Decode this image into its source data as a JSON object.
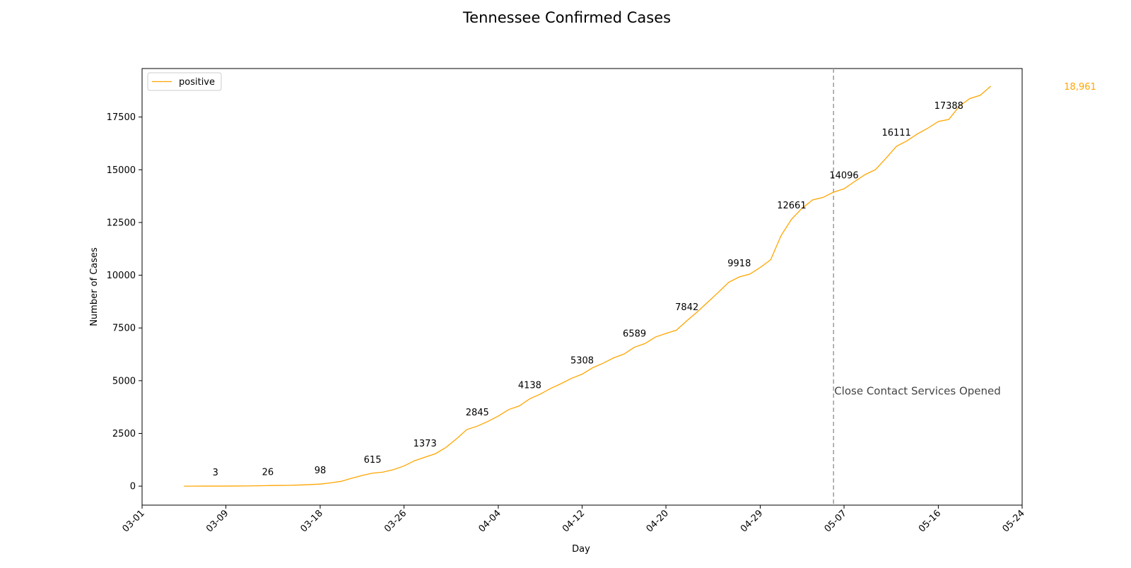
{
  "chart_data": {
    "type": "line",
    "title": "Tennessee Confirmed Cases",
    "xlabel": "Day",
    "ylabel": "Number of Cases",
    "xlim": [
      "2020-03-01",
      "2020-05-24"
    ],
    "ylim": [
      -900,
      19800
    ],
    "x_ticks": [
      "03-01",
      "03-09",
      "03-18",
      "03-26",
      "04-04",
      "04-12",
      "04-20",
      "04-29",
      "05-07",
      "05-16",
      "05-24"
    ],
    "x_tick_dates": [
      "2020-03-01",
      "2020-03-09",
      "2020-03-18",
      "2020-03-26",
      "2020-04-04",
      "2020-04-12",
      "2020-04-20",
      "2020-04-29",
      "2020-05-07",
      "2020-05-16",
      "2020-05-24"
    ],
    "y_ticks": [
      0,
      2500,
      5000,
      7500,
      10000,
      12500,
      15000,
      17500
    ],
    "grid": false,
    "legend": {
      "placement": "upper-left",
      "entries": [
        "positive"
      ]
    },
    "series": [
      {
        "name": "positive",
        "color": "#ffa500",
        "points": [
          [
            "2020-03-05",
            1
          ],
          [
            "2020-03-06",
            1
          ],
          [
            "2020-03-07",
            2
          ],
          [
            "2020-03-08",
            3
          ],
          [
            "2020-03-09",
            3
          ],
          [
            "2020-03-10",
            7
          ],
          [
            "2020-03-11",
            9
          ],
          [
            "2020-03-12",
            18
          ],
          [
            "2020-03-13",
            26
          ],
          [
            "2020-03-14",
            32
          ],
          [
            "2020-03-15",
            39
          ],
          [
            "2020-03-16",
            52
          ],
          [
            "2020-03-17",
            73
          ],
          [
            "2020-03-18",
            98
          ],
          [
            "2020-03-19",
            154
          ],
          [
            "2020-03-20",
            228
          ],
          [
            "2020-03-21",
            371
          ],
          [
            "2020-03-22",
            505
          ],
          [
            "2020-03-23",
            615
          ],
          [
            "2020-03-24",
            667
          ],
          [
            "2020-03-25",
            784
          ],
          [
            "2020-03-26",
            957
          ],
          [
            "2020-03-27",
            1203
          ],
          [
            "2020-03-28",
            1373
          ],
          [
            "2020-03-29",
            1537
          ],
          [
            "2020-03-30",
            1834
          ],
          [
            "2020-03-31",
            2239
          ],
          [
            "2020-04-01",
            2683
          ],
          [
            "2020-04-02",
            2845
          ],
          [
            "2020-04-03",
            3067
          ],
          [
            "2020-04-04",
            3321
          ],
          [
            "2020-04-05",
            3633
          ],
          [
            "2020-04-06",
            3802
          ],
          [
            "2020-04-07",
            4138
          ],
          [
            "2020-04-08",
            4362
          ],
          [
            "2020-04-09",
            4634
          ],
          [
            "2020-04-10",
            4862
          ],
          [
            "2020-04-11",
            5114
          ],
          [
            "2020-04-12",
            5308
          ],
          [
            "2020-04-13",
            5610
          ],
          [
            "2020-04-14",
            5827
          ],
          [
            "2020-04-15",
            6079
          ],
          [
            "2020-04-16",
            6263
          ],
          [
            "2020-04-17",
            6589
          ],
          [
            "2020-04-18",
            6762
          ],
          [
            "2020-04-19",
            7070
          ],
          [
            "2020-04-20",
            7238
          ],
          [
            "2020-04-21",
            7394
          ],
          [
            "2020-04-22",
            7842
          ],
          [
            "2020-04-23",
            8266
          ],
          [
            "2020-04-24",
            8726
          ],
          [
            "2020-04-25",
            9189
          ],
          [
            "2020-04-26",
            9667
          ],
          [
            "2020-04-27",
            9918
          ],
          [
            "2020-04-28",
            10052
          ],
          [
            "2020-04-29",
            10366
          ],
          [
            "2020-04-30",
            10735
          ],
          [
            "2020-05-01",
            11891
          ],
          [
            "2020-05-02",
            12661
          ],
          [
            "2020-05-03",
            13177
          ],
          [
            "2020-05-04",
            13571
          ],
          [
            "2020-05-05",
            13690
          ],
          [
            "2020-05-06",
            13938
          ],
          [
            "2020-05-07",
            14096
          ],
          [
            "2020-05-08",
            14441
          ],
          [
            "2020-05-09",
            14768
          ],
          [
            "2020-05-10",
            15007
          ],
          [
            "2020-05-11",
            15544
          ],
          [
            "2020-05-12",
            16111
          ],
          [
            "2020-05-13",
            16370
          ],
          [
            "2020-05-14",
            16699
          ],
          [
            "2020-05-15",
            16970
          ],
          [
            "2020-05-16",
            17288
          ],
          [
            "2020-05-17",
            17388
          ],
          [
            "2020-05-18",
            18011
          ],
          [
            "2020-05-19",
            18378
          ],
          [
            "2020-05-20",
            18532
          ],
          [
            "2020-05-21",
            18961
          ]
        ]
      }
    ],
    "point_labels": [
      {
        "x": "2020-03-08",
        "y": 3,
        "text": "3"
      },
      {
        "x": "2020-03-13",
        "y": 26,
        "text": "26"
      },
      {
        "x": "2020-03-18",
        "y": 98,
        "text": "98"
      },
      {
        "x": "2020-03-23",
        "y": 615,
        "text": "615"
      },
      {
        "x": "2020-03-28",
        "y": 1373,
        "text": "1373"
      },
      {
        "x": "2020-04-02",
        "y": 2845,
        "text": "2845"
      },
      {
        "x": "2020-04-07",
        "y": 4138,
        "text": "4138"
      },
      {
        "x": "2020-04-12",
        "y": 5308,
        "text": "5308"
      },
      {
        "x": "2020-04-17",
        "y": 6589,
        "text": "6589"
      },
      {
        "x": "2020-04-22",
        "y": 7842,
        "text": "7842"
      },
      {
        "x": "2020-04-27",
        "y": 9918,
        "text": "9918"
      },
      {
        "x": "2020-05-02",
        "y": 12661,
        "text": "12661"
      },
      {
        "x": "2020-05-07",
        "y": 14096,
        "text": "14096"
      },
      {
        "x": "2020-05-12",
        "y": 16111,
        "text": "16111"
      },
      {
        "x": "2020-05-17",
        "y": 17388,
        "text": "17388"
      }
    ],
    "last_value": {
      "x": "2020-05-21",
      "y": 18961,
      "text": "18,961",
      "color": "#ffa500"
    },
    "vline": {
      "x": "2020-05-06",
      "text": "Close Contact Services Opened",
      "color": "#a0a0a0",
      "style": "dashed",
      "text_y": 4200
    }
  }
}
